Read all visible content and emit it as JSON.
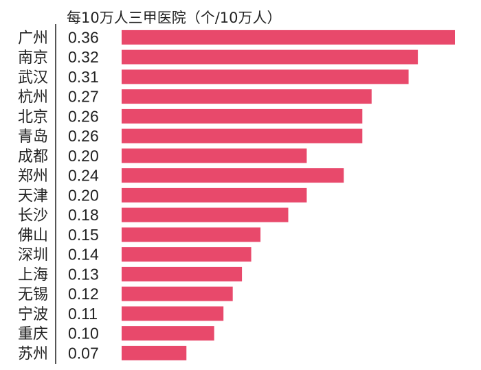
{
  "chart_data": {
    "type": "bar",
    "orientation": "horizontal",
    "title": "每10万人三甲医院（个/10万人）",
    "categories": [
      "广州",
      "南京",
      "武汉",
      "杭州",
      "北京",
      "青岛",
      "成都",
      "郑州",
      "天津",
      "长沙",
      "佛山",
      "深圳",
      "上海",
      "无锡",
      "宁波",
      "重庆",
      "苏州"
    ],
    "values": [
      0.36,
      0.32,
      0.31,
      0.27,
      0.26,
      0.26,
      0.2,
      0.24,
      0.2,
      0.18,
      0.15,
      0.14,
      0.13,
      0.12,
      0.11,
      0.1,
      0.07
    ],
    "value_labels": [
      "0.36",
      "0.32",
      "0.31",
      "0.27",
      "0.26",
      "0.26",
      "0.20",
      "0.24",
      "0.20",
      "0.18",
      "0.15",
      "0.14",
      "0.13",
      "0.12",
      "0.11",
      "0.10",
      "0.07"
    ],
    "xlim": [
      0,
      0.36
    ],
    "grid": false,
    "legend": "none",
    "colors": {
      "bar": "#E8496B",
      "text": "#222222",
      "axis": "#555555"
    }
  }
}
